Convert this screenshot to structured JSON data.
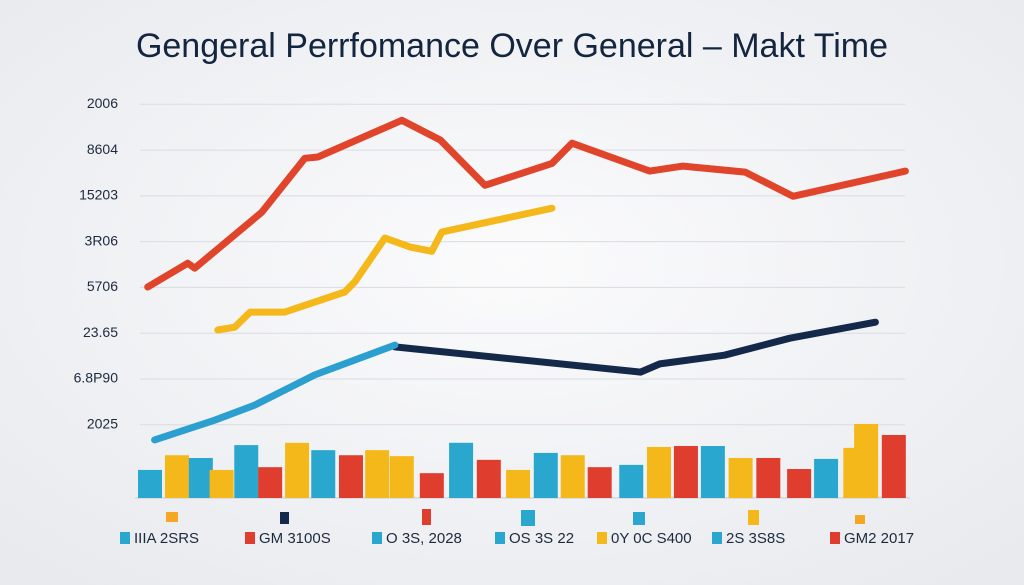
{
  "title": "Gengeral Perrfomance Over General – Makt Time",
  "chart_data": [
    {
      "type": "line",
      "xlim": [
        0,
        100
      ],
      "ylim": [
        -1.6,
        7.4
      ],
      "yticks": [
        {
          "value": 7,
          "label": "2006"
        },
        {
          "value": 6,
          "label": "8604"
        },
        {
          "value": 5,
          "label": "15203"
        },
        {
          "value": 4,
          "label": "3R06"
        },
        {
          "value": 3,
          "label": "5706"
        },
        {
          "value": 2,
          "label": "23.65"
        },
        {
          "value": 1,
          "label": "6.8P90"
        },
        {
          "value": 0,
          "label": "2025"
        }
      ],
      "grid": true,
      "series": [
        {
          "color": "#e0442b",
          "x": [
            1,
            6.2,
            7.1,
            15.8,
            21.4,
            23.1,
            34,
            39,
            44.8,
            53.5,
            56.1,
            66.2,
            70.5,
            78.6,
            84.8,
            99.4
          ],
          "values": [
            3.01,
            3.53,
            3.42,
            4.64,
            5.82,
            5.85,
            6.65,
            6.22,
            5.23,
            5.71,
            6.15,
            5.54,
            5.65,
            5.52,
            4.99,
            5.54
          ]
        },
        {
          "color": "#f5b81a",
          "x": [
            10.1,
            12.3,
            14.3,
            18.8,
            26.6,
            27.9,
            31.8,
            35.1,
            37.9,
            39.2,
            53.5
          ],
          "values": [
            2.07,
            2.13,
            2.46,
            2.46,
            2.9,
            3.12,
            4.08,
            3.88,
            3.79,
            4.21,
            4.73
          ]
        },
        {
          "color": "#14294a",
          "x": [
            33.1,
            65,
            67.5,
            75.9,
            84.4,
            95.5
          ],
          "values": [
            1.7,
            1.15,
            1.33,
            1.52,
            1.89,
            2.24
          ]
        },
        {
          "color": "#2a9fd0",
          "x": [
            1.9,
            9.7,
            14.9,
            22.7,
            33.1
          ],
          "values": [
            -0.33,
            0.1,
            0.43,
            1.09,
            1.74
          ]
        }
      ]
    },
    {
      "type": "bar",
      "xlim": [
        0,
        100
      ],
      "ylim": [
        0,
        2
      ],
      "x": [
        1.3,
        4.8,
        7.9,
        10.6,
        13.8,
        16.9,
        20.4,
        23.8,
        27.4,
        30.8,
        34,
        37.9,
        41.7,
        45.3,
        49.1,
        52.7,
        56.2,
        59.7,
        63.8,
        67.4,
        70.9,
        74.4,
        78,
        81.6,
        85.6,
        89.1,
        92.9,
        94.3,
        97.9
      ],
      "values": [
        0.61,
        0.93,
        0.87,
        0.61,
        1.15,
        0.67,
        1.2,
        1.04,
        0.93,
        1.04,
        0.91,
        0.54,
        1.2,
        0.83,
        0.61,
        0.98,
        0.93,
        0.67,
        0.72,
        1.11,
        1.13,
        1.13,
        0.87,
        0.87,
        0.63,
        0.85,
        1.09,
        1.61,
        1.37
      ],
      "colors": [
        "#2aa7cf",
        "#f5b81a",
        "#2aa7cf",
        "#f5b81a",
        "#2aa7cf",
        "#df3d2e",
        "#f5b81a",
        "#2aa7cf",
        "#df3d2e",
        "#f5b81a",
        "#f5b81a",
        "#df3d2e",
        "#2aa7cf",
        "#df3d2e",
        "#f5b81a",
        "#2aa7cf",
        "#f5b81a",
        "#df3d2e",
        "#2aa7cf",
        "#f5b81a",
        "#df3d2e",
        "#2aa7cf",
        "#f5b81a",
        "#df3d2e",
        "#df3d2e",
        "#2aa7cf",
        "#f5b81a",
        "#f5b81a",
        "#df3d2e"
      ],
      "legend": [
        {
          "name": "IIIA 2SRS",
          "color": "#2aa7cf"
        },
        {
          "name": "GM 3100S",
          "color": "#df3d2e"
        },
        {
          "name": "O 3S, 2028",
          "color": "#2aa7cf"
        },
        {
          "name": "OS 3S 22",
          "color": "#2aa7cf"
        },
        {
          "name": "0Y 0C S400",
          "color": "#f5b81a"
        },
        {
          "name": "2S 3S8S",
          "color": "#2aa7cf"
        },
        {
          "name": "GM2 2017",
          "color": "#df3d2e"
        }
      ]
    }
  ]
}
